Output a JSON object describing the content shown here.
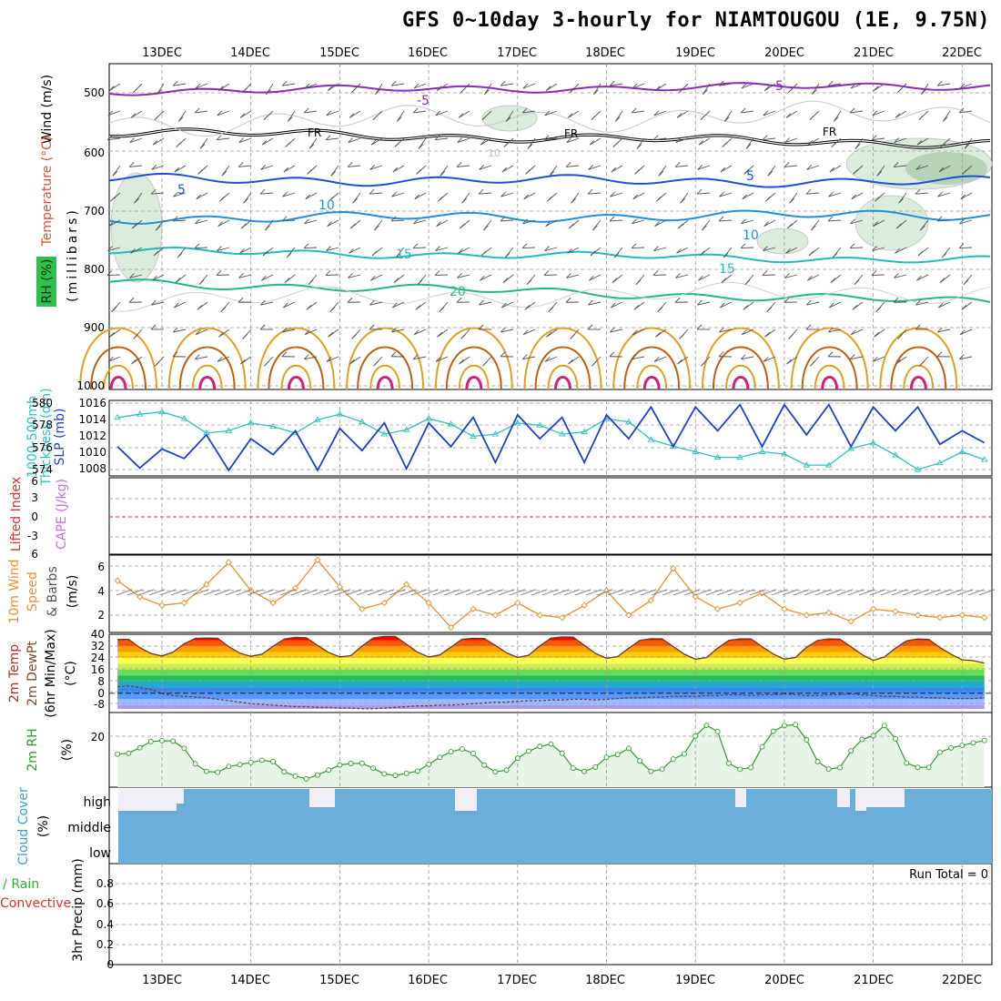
{
  "header": {
    "title": "GFS 0~10day 3-hourly for NIAMTOUGOU (1E, 9.75N)"
  },
  "time_axis": {
    "date_labels": [
      "13DEC",
      "14DEC",
      "15DEC",
      "16DEC",
      "17DEC",
      "18DEC",
      "19DEC",
      "20DEC",
      "21DEC",
      "22DEC"
    ],
    "day_start": 12.5,
    "day_end": 22.25
  },
  "colors": {
    "grid": "#999999",
    "temp_purple": "#8a2bb8",
    "temp_freezing": "#000000",
    "temp_blue": "#1f4fd8",
    "temp_lightblue": "#1e90e0",
    "temp_teal": "#22bbbb",
    "temp_green": "#22b888",
    "theta_orange": "#e0a020",
    "theta_dark": "#c06010",
    "theta_magenta": "#d0207a",
    "thickness": "#30c0c0",
    "slp": "#1f3fd0",
    "lifted_index_zero": "#e03030",
    "wind10": "#e89030",
    "barb": "#555555",
    "rh2m_line": "#339933",
    "rh2m_fill": "#e8f4e8",
    "cloud_fill": "#6aaedc",
    "cloud_gap": "#f2eef8"
  },
  "panels": {
    "upper_air": {
      "ylabel_wind": "Wind (m/s)",
      "ylabel_temp": "Temperature (°C)",
      "ylabel_rh": "RH (%)",
      "ylabel_mb": "(millibars)",
      "tick_labels": [
        "500",
        "600",
        "700",
        "800",
        "900",
        "1000"
      ],
      "contour_labels": [
        "5",
        "-5",
        "FR",
        "FR",
        "FR",
        "5",
        "5",
        "10",
        "10",
        "15",
        "15",
        "20",
        "10"
      ]
    },
    "thickness_slp": {
      "ylabel_a": "1000-500mb",
      "ylabel_b": "Thickness (dm)",
      "ylabel_c": "SLP (mb)",
      "left_ticks": [
        "580",
        "578",
        "576",
        "574"
      ],
      "right_ticks": [
        "1016",
        "1014",
        "1012",
        "1010",
        "1008"
      ]
    },
    "stability": {
      "ylabel_a": "Lifted Index",
      "ylabel_b": "CAPE (J/kg)",
      "ticks": [
        "6",
        "3",
        "0",
        "-3",
        "6"
      ]
    },
    "wind10m": {
      "ylabel_a": "10m Wind",
      "ylabel_b": "Speed",
      "ylabel_c": "& Barbs",
      "ylabel_d": "(m/s)",
      "ticks": [
        "6",
        "4",
        "2"
      ]
    },
    "temp2m": {
      "ylabel_a": "2m Temp",
      "ylabel_b": "2m DewPt",
      "ylabel_c": "(6hr Min/Max)",
      "ylabel_d": "(°C)",
      "ticks": [
        "40",
        "32",
        "24",
        "16",
        "8",
        "0",
        "-8"
      ]
    },
    "rh2m": {
      "ylabel_a": "2m RH",
      "ylabel_b": "(%)",
      "ticks": [
        "20"
      ]
    },
    "cloud": {
      "ylabel_a": "Cloud Cover",
      "ylabel_b": "(%)",
      "levels": [
        "high",
        "middle",
        "low"
      ]
    },
    "precip": {
      "ylabel_a": "Total / Rain",
      "ylabel_b": "Convective",
      "ylabel_c": "3hr Precip (mm)",
      "ticks": [
        "0.8",
        "0.6",
        "0.4",
        "0.2",
        "0"
      ],
      "run_total": "Run Total = 0"
    }
  },
  "chart_data": [
    {
      "type": "line",
      "title": "1000-500mb Thickness and SLP",
      "x_unit": "day of December",
      "x": [
        12.5,
        12.75,
        13.0,
        13.25,
        13.5,
        13.75,
        14.0,
        14.25,
        14.5,
        14.75,
        15.0,
        15.25,
        15.5,
        15.75,
        16.0,
        16.25,
        16.5,
        16.75,
        17.0,
        17.25,
        17.5,
        17.75,
        18.0,
        18.25,
        18.5,
        18.75,
        19.0,
        19.25,
        19.5,
        19.75,
        20.0,
        20.25,
        20.5,
        20.75,
        21.0,
        21.25,
        21.5,
        21.75,
        22.0,
        22.25
      ],
      "series": [
        {
          "name": "1000-500mb Thickness (dm)",
          "values": [
            578.7,
            579.0,
            579.2,
            578.6,
            577.3,
            577.5,
            578.2,
            577.9,
            577.3,
            578.5,
            579.0,
            578.3,
            577.2,
            577.6,
            578.6,
            578.1,
            577.0,
            577.2,
            578.2,
            578.0,
            577.2,
            577.4,
            578.6,
            578.3,
            576.7,
            576.1,
            575.6,
            575.1,
            575.1,
            575.6,
            575.4,
            574.4,
            574.4,
            575.9,
            576.4,
            575.3,
            574.0,
            574.6,
            575.6,
            574.9
          ]
        },
        {
          "name": "SLP (mb)",
          "values": [
            1010.5,
            1007.8,
            1010.2,
            1009.0,
            1012.0,
            1007.5,
            1011.5,
            1009.5,
            1012.5,
            1007.5,
            1012.8,
            1010.0,
            1013.5,
            1007.7,
            1013.5,
            1010.5,
            1014.2,
            1008.5,
            1014.5,
            1011.5,
            1014.2,
            1008.5,
            1014.5,
            1011.5,
            1015.5,
            1010.5,
            1015.5,
            1012.5,
            1015.8,
            1010.5,
            1015.8,
            1012.0,
            1015.8,
            1010.5,
            1015.5,
            1012.5,
            1015.5,
            1010.8,
            1012.5,
            1011.0
          ]
        }
      ]
    },
    {
      "type": "line",
      "title": "10m Wind Speed",
      "x": [
        12.5,
        12.75,
        13.0,
        13.25,
        13.5,
        13.75,
        14.0,
        14.25,
        14.5,
        14.75,
        15.0,
        15.25,
        15.5,
        15.75,
        16.0,
        16.25,
        16.5,
        16.75,
        17.0,
        17.25,
        17.5,
        17.75,
        18.0,
        18.25,
        18.5,
        18.75,
        19.0,
        19.25,
        19.5,
        19.75,
        20.0,
        20.25,
        20.5,
        20.75,
        21.0,
        21.25,
        21.5,
        21.75,
        22.0,
        22.25
      ],
      "series": [
        {
          "name": "10m Wind Speed (m/s)",
          "values": [
            4.8,
            3.5,
            2.8,
            3.0,
            4.5,
            6.3,
            4.0,
            3.0,
            4.2,
            6.5,
            4.3,
            2.5,
            3.0,
            4.5,
            3.0,
            1.0,
            2.5,
            2.0,
            3.0,
            2.0,
            1.8,
            2.8,
            4.0,
            2.0,
            3.2,
            5.8,
            3.5,
            2.5,
            3.0,
            3.8,
            2.5,
            2.0,
            2.2,
            1.5,
            2.5,
            2.3,
            2.0,
            1.8,
            2.0,
            1.8
          ]
        }
      ],
      "ylim": [
        1,
        6.8
      ]
    },
    {
      "type": "area",
      "title": "2m Temp / DewPt",
      "x": [
        12.5,
        12.625,
        12.75,
        12.875,
        13.0,
        13.125,
        13.25,
        13.375,
        13.5,
        13.625,
        13.75,
        13.875,
        14.0,
        14.125,
        14.25,
        14.375,
        14.5,
        14.625,
        14.75,
        14.875,
        15.0,
        15.125,
        15.25,
        15.375,
        15.5,
        15.625,
        15.75,
        15.875,
        16.0,
        16.125,
        16.25,
        16.375,
        16.5,
        16.625,
        16.75,
        16.875,
        17.0,
        17.125,
        17.25,
        17.375,
        17.5,
        17.625,
        17.75,
        17.875,
        18.0,
        18.125,
        18.25,
        18.375,
        18.5,
        18.625,
        18.75,
        18.875,
        19.0,
        19.125,
        19.25,
        19.375,
        19.5,
        19.625,
        19.75,
        19.875,
        20.0,
        20.125,
        20.25,
        20.375,
        20.5,
        20.625,
        20.75,
        20.875,
        21.0,
        21.125,
        21.25,
        21.375,
        21.5,
        21.625,
        21.75,
        21.875,
        22.0,
        22.125,
        22.25
      ],
      "series": [
        {
          "name": "2m Temp (°C)",
          "values": [
            36.5,
            36.6,
            31.0,
            27.0,
            25.3,
            27.9,
            33.6,
            37.2,
            37.4,
            37.3,
            31.7,
            27.2,
            25.1,
            26.5,
            31.9,
            36.8,
            37.9,
            37.6,
            32.4,
            27.6,
            24.7,
            25.5,
            32.0,
            37.5,
            38.5,
            38.5,
            33.2,
            27.8,
            24.6,
            26.0,
            31.3,
            36.6,
            37.3,
            37.1,
            32.4,
            27.4,
            24.3,
            25.8,
            32.1,
            37.4,
            38.2,
            38.0,
            32.5,
            27.0,
            23.7,
            24.9,
            30.6,
            35.9,
            37.0,
            36.9,
            31.7,
            26.5,
            23.1,
            24.2,
            30.6,
            35.8,
            36.9,
            36.8,
            31.6,
            26.6,
            23.2,
            24.3,
            31.2,
            35.9,
            36.9,
            36.7,
            31.5,
            26.2,
            22.3,
            24.6,
            30.6,
            35.5,
            36.8,
            36.5,
            31.0,
            26.5,
            22.7,
            22.1,
            20.5
          ]
        },
        {
          "name": "2m DewPt (°C)",
          "values": [
            4.5,
            5.0,
            4.0,
            2.5,
            0.0,
            -1.5,
            -2.0,
            -2.5,
            -3.0,
            -4.0,
            -5.0,
            -6.0,
            -7.0,
            -7.5,
            -8.0,
            -8.5,
            -9.0,
            -9.0,
            -9.5,
            -9.5,
            -10.0,
            -10.0,
            -10.5,
            -10.5,
            -10.0,
            -9.5,
            -9.0,
            -8.5,
            -8.5,
            -8.0,
            -8.0,
            -7.5,
            -7.0,
            -6.5,
            -6.0,
            -6.0,
            -5.5,
            -5.0,
            -5.0,
            -4.5,
            -4.5,
            -4.0,
            -4.0,
            -4.5,
            -4.0,
            -3.5,
            -3.0,
            -3.0,
            -2.5,
            -2.5,
            -2.0,
            -2.0,
            -2.0,
            -1.5,
            -1.5,
            -1.0,
            -1.0,
            -1.5,
            -1.0,
            -1.0,
            -0.5,
            -1.0,
            -1.5,
            -1.5,
            -1.0,
            -1.0,
            -0.5,
            -1.0,
            -1.5,
            -2.0,
            -2.0,
            -2.5,
            -2.5,
            -3.0,
            -3.0,
            -3.5,
            -3.5,
            -3.5,
            -3.0
          ]
        }
      ],
      "ylim": [
        -13,
        40
      ]
    },
    {
      "type": "area",
      "title": "2m RH",
      "x": [
        12.5,
        12.625,
        12.75,
        12.875,
        13.0,
        13.125,
        13.25,
        13.375,
        13.5,
        13.625,
        13.75,
        13.875,
        14.0,
        14.125,
        14.25,
        14.375,
        14.5,
        14.625,
        14.75,
        14.875,
        15.0,
        15.125,
        15.25,
        15.375,
        15.5,
        15.625,
        15.75,
        15.875,
        16.0,
        16.125,
        16.25,
        16.375,
        16.5,
        16.625,
        16.75,
        16.875,
        17.0,
        17.125,
        17.25,
        17.375,
        17.5,
        17.625,
        17.75,
        17.875,
        18.0,
        18.125,
        18.25,
        18.375,
        18.5,
        18.625,
        18.75,
        18.875,
        19.0,
        19.125,
        19.25,
        19.375,
        19.5,
        19.625,
        19.75,
        19.875,
        20.0,
        20.125,
        20.25,
        20.375,
        20.5,
        20.625,
        20.75,
        20.875,
        21.0,
        21.125,
        21.25,
        21.375,
        21.5,
        21.625,
        21.75,
        21.875,
        22.0,
        22.125,
        22.25
      ],
      "series": [
        {
          "name": "2m RH (%)",
          "values": [
            15.5,
            15.9,
            18.5,
            21.4,
            21.8,
            21.6,
            18.2,
            10.9,
            7.4,
            7.0,
            9.7,
            10.6,
            11.6,
            12.6,
            12.0,
            7.2,
            5.2,
            3.9,
            5.7,
            8.0,
            10.4,
            11.1,
            11.2,
            8.9,
            6.2,
            5.5,
            6.5,
            7.5,
            10.7,
            14.0,
            16.6,
            17.9,
            15.8,
            10.3,
            7.2,
            8.0,
            13.6,
            16.9,
            19.1,
            20.2,
            15.9,
            8.9,
            7.4,
            9.4,
            14.0,
            15.3,
            18.2,
            12.3,
            7.4,
            8.4,
            13.2,
            15.6,
            24.0,
            29.0,
            26.1,
            11.2,
            8.4,
            9.2,
            18.9,
            26.2,
            28.9,
            29.3,
            22.2,
            12.0,
            8.5,
            9.2,
            17.0,
            22.4,
            24.1,
            28.9,
            22.7,
            11.3,
            9.3,
            9.3,
            16.4,
            18.4,
            19.6,
            20.8,
            21.9
          ]
        }
      ],
      "ylim": [
        0,
        35
      ]
    },
    {
      "type": "bar",
      "title": "3hr Precip",
      "categories": [
        "13DEC",
        "14DEC",
        "15DEC",
        "16DEC",
        "17DEC",
        "18DEC",
        "19DEC",
        "20DEC",
        "21DEC",
        "22DEC"
      ],
      "values": [
        0,
        0,
        0,
        0,
        0,
        0,
        0,
        0,
        0,
        0
      ],
      "ylabel": "3hr Precip (mm)",
      "ylim": [
        0,
        0.95
      ]
    }
  ]
}
